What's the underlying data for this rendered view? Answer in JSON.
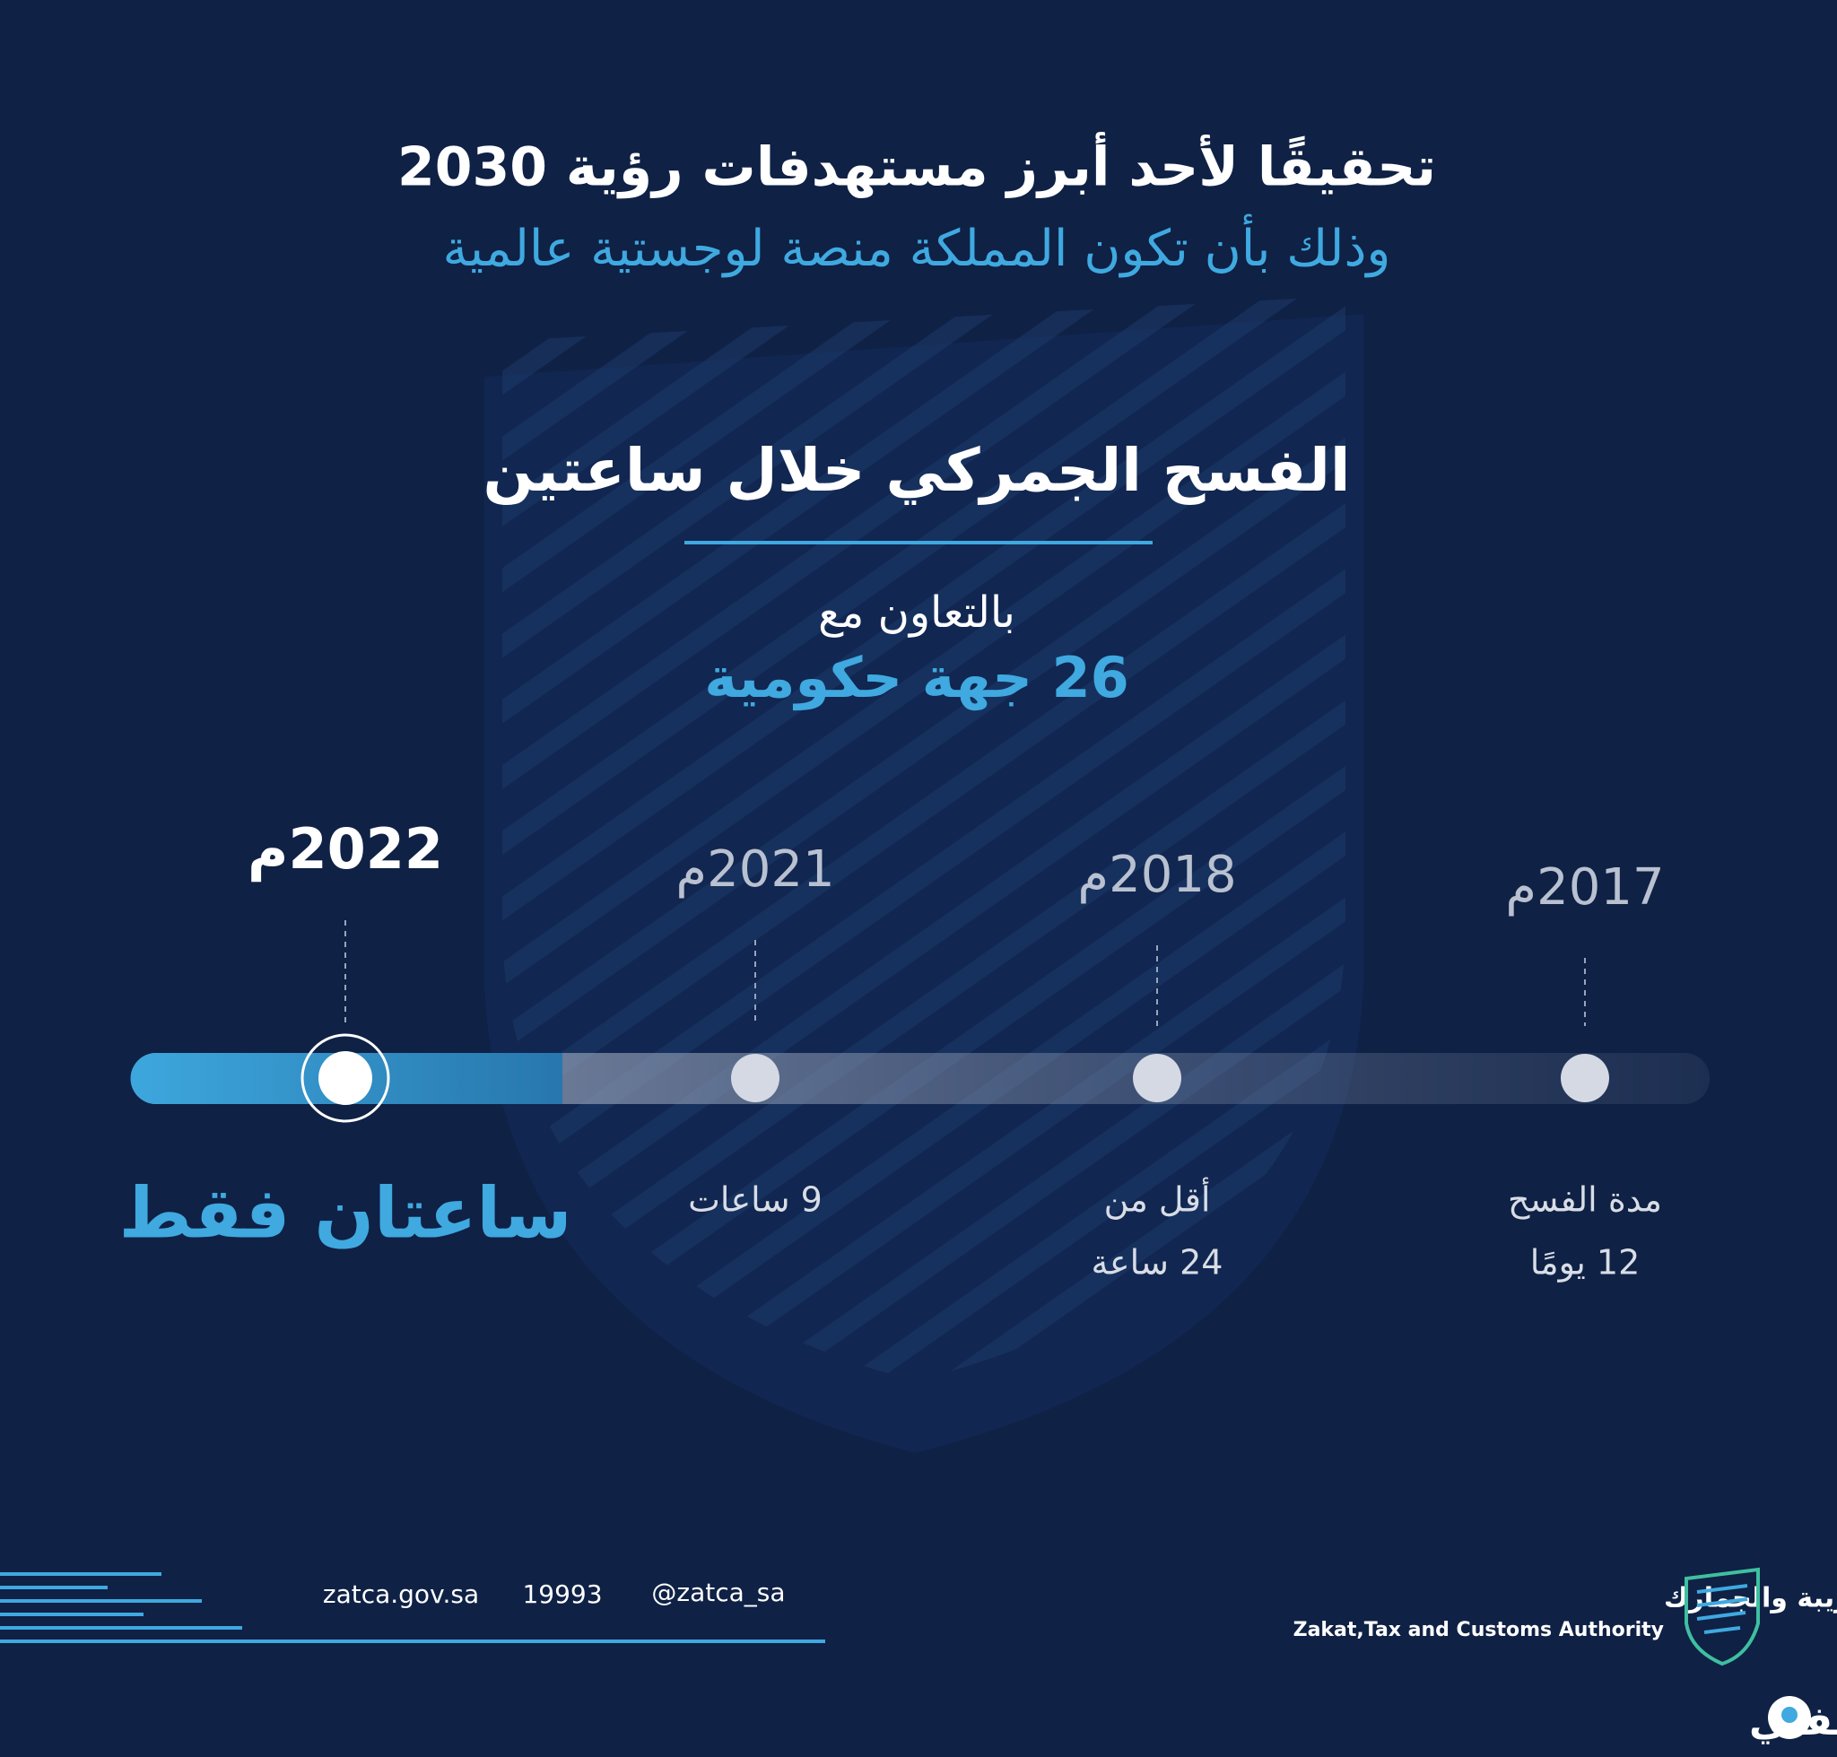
{
  "header": {
    "title": "تحقيقًا لأحد أبرز مستهدفات رؤية 2030",
    "subtitle": "وذلك بأن تكون المملكة منصة لوجستية عالمية"
  },
  "main": {
    "title": "الفسح الجمركي خلال ساعتين",
    "cooperation_label": "بالتعاون مع",
    "cooperation_value": "26 جهة حكومية"
  },
  "timeline": [
    {
      "year": "2022م",
      "duration": [
        "ساعتان فقط"
      ]
    },
    {
      "year": "2021م",
      "duration": [
        "9 ساعات"
      ]
    },
    {
      "year": "2018م",
      "duration": [
        "أقل من",
        "24 ساعة"
      ]
    },
    {
      "year": "2017م",
      "duration": [
        "مدة الفسح",
        "12 يومًا"
      ]
    }
  ],
  "footer": {
    "website": "zatca.gov.sa",
    "phone": "19993",
    "handle": "@zatca_sa"
  },
  "logo": {
    "arabic": "هيئة الزكاة والضريبة والجمارك",
    "english": "Zakat,Tax and Customs Authority"
  },
  "watermark": "ثقفني"
}
